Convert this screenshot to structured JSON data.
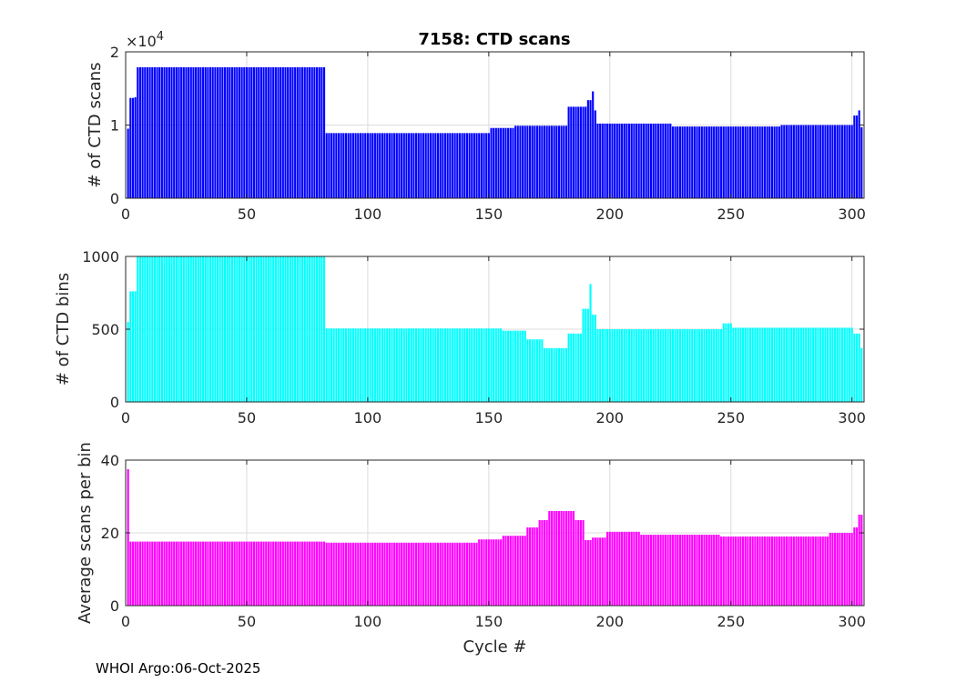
{
  "figure": {
    "footer": "WHOI Argo:06-Oct-2025"
  },
  "chart_data": [
    {
      "type": "bar",
      "title": "7158: CTD scans",
      "xlabel": "",
      "ylabel": "# of CTD scans",
      "xlim": [
        0,
        305
      ],
      "ylim": [
        0,
        20000
      ],
      "xticks": [
        "0",
        "50",
        "100",
        "150",
        "200",
        "250",
        "300"
      ],
      "yticks": [
        "0",
        "1",
        "2"
      ],
      "y_exponent_label": "×10",
      "y_exponent_power": "4",
      "color": "#0000ff",
      "grid": true,
      "series": [
        {
          "segments": [
            {
              "from": 1,
              "to": 1,
              "value": 9500
            },
            {
              "from": 2,
              "to": 3,
              "value": 13700
            },
            {
              "from": 4,
              "to": 4,
              "value": 13800
            },
            {
              "from": 5,
              "to": 82,
              "value": 17900
            },
            {
              "from": 83,
              "to": 150,
              "value": 8900
            },
            {
              "from": 151,
              "to": 160,
              "value": 9600
            },
            {
              "from": 161,
              "to": 182,
              "value": 9900
            },
            {
              "from": 183,
              "to": 190,
              "value": 12500
            },
            {
              "from": 191,
              "to": 192,
              "value": 13400
            },
            {
              "from": 193,
              "to": 193,
              "value": 14600
            },
            {
              "from": 194,
              "to": 194,
              "value": 12000
            },
            {
              "from": 195,
              "to": 225,
              "value": 10200
            },
            {
              "from": 226,
              "to": 270,
              "value": 9800
            },
            {
              "from": 271,
              "to": 300,
              "value": 10000
            },
            {
              "from": 301,
              "to": 302,
              "value": 11300
            },
            {
              "from": 303,
              "to": 303,
              "value": 12000
            },
            {
              "from": 304,
              "to": 304,
              "value": 9700
            }
          ]
        }
      ]
    },
    {
      "type": "bar",
      "title": "",
      "xlabel": "",
      "ylabel": "# of CTD bins",
      "xlim": [
        0,
        305
      ],
      "ylim": [
        0,
        1000
      ],
      "xticks": [
        "0",
        "50",
        "100",
        "150",
        "200",
        "250",
        "300"
      ],
      "yticks": [
        "0",
        "500",
        "1000"
      ],
      "color": "#00ffff",
      "grid": true,
      "series": [
        {
          "segments": [
            {
              "from": 1,
              "to": 1,
              "value": 550
            },
            {
              "from": 2,
              "to": 4,
              "value": 760
            },
            {
              "from": 5,
              "to": 82,
              "value": 1000
            },
            {
              "from": 83,
              "to": 155,
              "value": 505
            },
            {
              "from": 156,
              "to": 165,
              "value": 490
            },
            {
              "from": 166,
              "to": 172,
              "value": 430
            },
            {
              "from": 173,
              "to": 182,
              "value": 370
            },
            {
              "from": 183,
              "to": 188,
              "value": 470
            },
            {
              "from": 189,
              "to": 191,
              "value": 640
            },
            {
              "from": 192,
              "to": 192,
              "value": 810
            },
            {
              "from": 193,
              "to": 194,
              "value": 600
            },
            {
              "from": 195,
              "to": 246,
              "value": 500
            },
            {
              "from": 247,
              "to": 250,
              "value": 540
            },
            {
              "from": 251,
              "to": 300,
              "value": 510
            },
            {
              "from": 301,
              "to": 303,
              "value": 470
            },
            {
              "from": 304,
              "to": 304,
              "value": 370
            }
          ]
        }
      ]
    },
    {
      "type": "bar",
      "title": "",
      "xlabel": "Cycle #",
      "ylabel": "Average scans per bin",
      "xlim": [
        0,
        305
      ],
      "ylim": [
        0,
        40
      ],
      "xticks": [
        "0",
        "50",
        "100",
        "150",
        "200",
        "250",
        "300"
      ],
      "yticks": [
        "0",
        "20",
        "40"
      ],
      "color": "#ff00ff",
      "grid": true,
      "series": [
        {
          "segments": [
            {
              "from": 1,
              "to": 1,
              "value": 37.5
            },
            {
              "from": 2,
              "to": 82,
              "value": 17.6
            },
            {
              "from": 83,
              "to": 145,
              "value": 17.3
            },
            {
              "from": 146,
              "to": 155,
              "value": 18.2
            },
            {
              "from": 156,
              "to": 165,
              "value": 19.2
            },
            {
              "from": 166,
              "to": 170,
              "value": 21.5
            },
            {
              "from": 171,
              "to": 174,
              "value": 23.5
            },
            {
              "from": 175,
              "to": 185,
              "value": 26.0
            },
            {
              "from": 186,
              "to": 189,
              "value": 23.5
            },
            {
              "from": 190,
              "to": 192,
              "value": 18.0
            },
            {
              "from": 193,
              "to": 198,
              "value": 18.7
            },
            {
              "from": 199,
              "to": 212,
              "value": 20.3
            },
            {
              "from": 213,
              "to": 245,
              "value": 19.5
            },
            {
              "from": 246,
              "to": 290,
              "value": 19.0
            },
            {
              "from": 291,
              "to": 300,
              "value": 20.0
            },
            {
              "from": 301,
              "to": 302,
              "value": 21.5
            },
            {
              "from": 303,
              "to": 304,
              "value": 25.0
            }
          ]
        }
      ]
    }
  ]
}
